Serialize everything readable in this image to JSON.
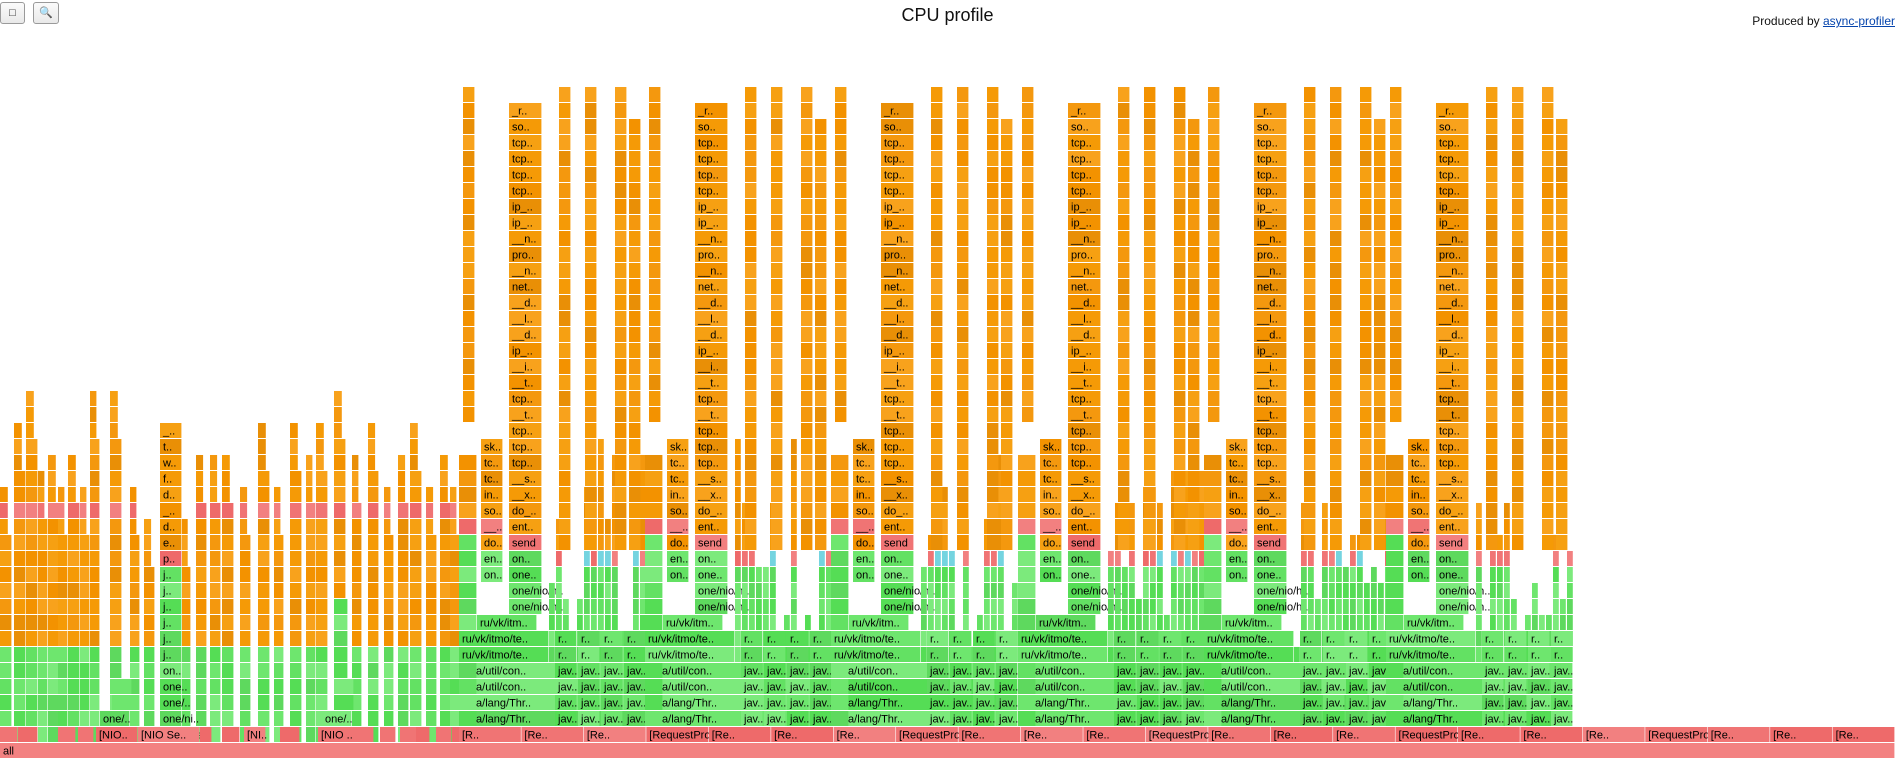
{
  "toolbar": {
    "reverse_icon": "□",
    "search_icon": "🔍"
  },
  "header": {
    "title": "CPU profile",
    "produced_by": "Produced by",
    "link_text": "async-profiler"
  },
  "colors": {
    "root": "#f38181",
    "frame_red": "#f07474",
    "java_green": "#63e163",
    "java_green_alt": "#7cea7c",
    "native_orange": "#f59a06",
    "kernel_orange": "#f9a320",
    "cyan": "#74d4e0"
  },
  "chart_data": {
    "type": "flame",
    "root": "all",
    "request_columns": [
      {
        "depth": 23,
        "frames": [
          {
            "label": "[RequestProce..",
            "kind": "red"
          },
          {
            "label": "java/lang/Thr..",
            "kind": "green"
          },
          {
            "label": "java/lang/Thr..",
            "kind": "green"
          },
          {
            "label": "java/util/con..",
            "kind": "green"
          },
          {
            "label": "java/util/con..",
            "kind": "green"
          },
          {
            "label": "ru/vk/itmo/te..",
            "kind": "green"
          },
          {
            "label": "ru/vk/itmo/te..",
            "kind": "green"
          },
          {
            "label": "r..",
            "kind": "green"
          },
          {
            "label": "o..",
            "kind": "green"
          },
          {
            "label": "o..",
            "kind": "green"
          },
          {
            "label": "o..",
            "kind": "green"
          },
          {
            "label": "o..",
            "kind": "green"
          },
          {
            "label": "o..",
            "kind": "green"
          },
          {
            "label": "s..",
            "kind": "red"
          },
          {
            "label": "d..",
            "kind": "orange"
          },
          {
            "label": "_..",
            "kind": "orange"
          },
          {
            "label": "t..",
            "kind": "orange"
          },
          {
            "label": "t..",
            "kind": "orange"
          },
          {
            "label": "_..",
            "kind": "orange"
          },
          {
            "label": "t..",
            "kind": "orange"
          }
        ]
      }
    ],
    "send_column": [
      "one/nio/h..",
      "one/nio/h..",
      "one..",
      "on..",
      "send",
      "ent..",
      "do_..",
      "__x..",
      "__s..",
      "tcp..",
      "tcp..",
      "tcp..",
      "__t..",
      "tcp..",
      "__t..",
      "__i..",
      "ip_..",
      "__d..",
      "__l..",
      "__d..",
      "net..",
      "__n..",
      "pro..",
      "__n..",
      "ip_..",
      "ip_..",
      "tcp..",
      "tcp..",
      "tcp..",
      "tcp..",
      "so..",
      "_r.."
    ],
    "sk_column": [
      "on..",
      "en..",
      "do..",
      "__..",
      "so..",
      "in..",
      "tc..",
      "tc..",
      "sk.."
    ],
    "nio_column": [
      "[NIO Se..",
      "one/ni..",
      "one/..",
      "one..",
      "on..",
      "j..",
      "j..",
      "j..",
      "j..",
      "j..",
      "j..",
      "p..",
      "e..",
      "d..",
      "_..",
      "d..",
      "f..",
      "w..",
      "t..",
      "_.."
    ],
    "bottom_labels": [
      "[..",
      "[..",
      "[..",
      "[..",
      "[NIO..",
      "[NIO Se..",
      "[..",
      "[..",
      "[NI..",
      "[..",
      "[NIO ..",
      "[..",
      "[..",
      "[..",
      "[..",
      "[..",
      "[..",
      "[R..",
      "[Re..",
      "[Re..",
      "[RequestProces..",
      "[Re..",
      "[Re..",
      "[Re..",
      "[RequestProces..",
      "[Re..",
      "[Re..",
      "[Re..",
      "[RequestProce..",
      "[Re..",
      "[Re..",
      "[Re..",
      "[RequestProce..",
      "[Re..",
      "[Re..",
      "[Re..",
      "[RequestProces..",
      "[Re..",
      "[Re..",
      "[Re.."
    ]
  }
}
